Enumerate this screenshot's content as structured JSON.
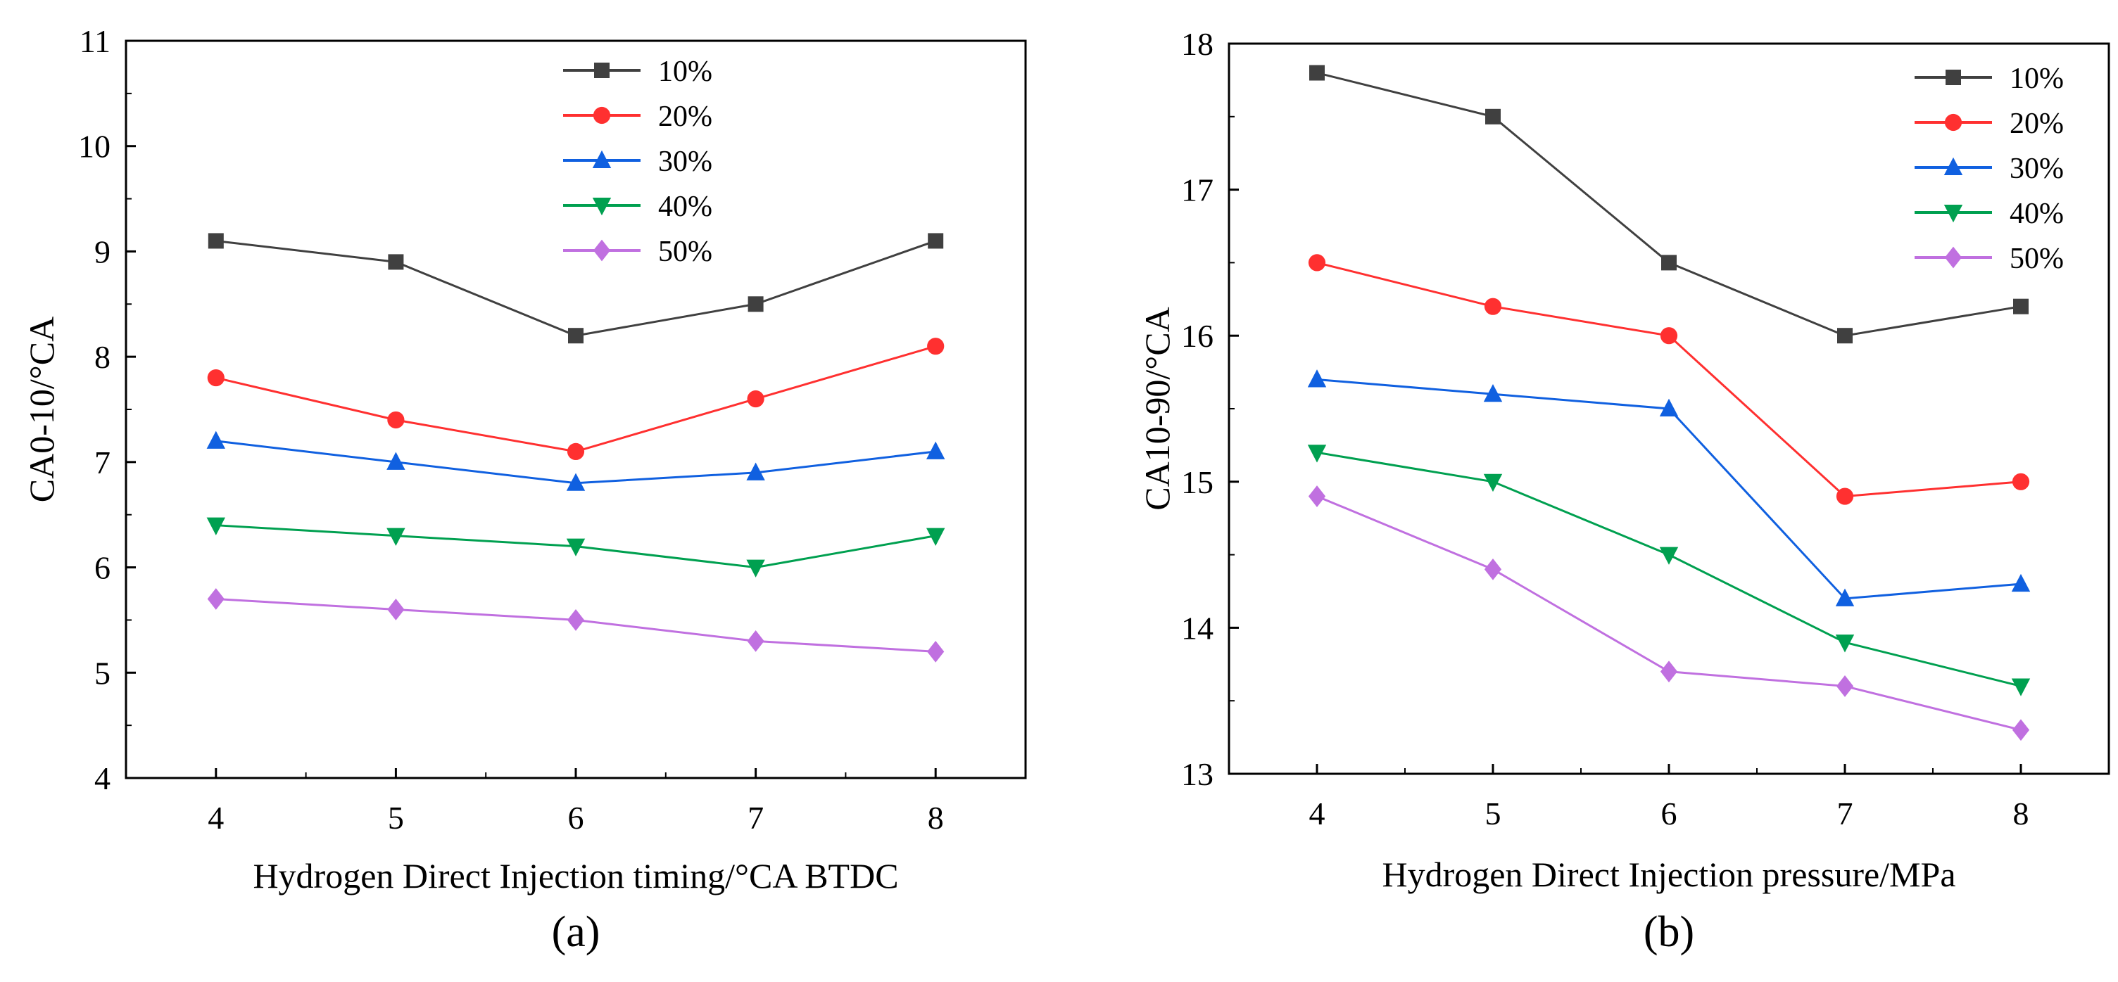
{
  "chart_data": [
    {
      "type": "line",
      "panel_label": "(a)",
      "title": "",
      "xlabel": "Hydrogen Direct Injection timing/°CA BTDC",
      "ylabel": "CA0-10/°CA",
      "x": [
        4,
        5,
        6,
        7,
        8
      ],
      "xlim": [
        3.5,
        8.5
      ],
      "ylim": [
        4,
        11
      ],
      "yticks": [
        4,
        5,
        6,
        7,
        8,
        9,
        10,
        11
      ],
      "legend_position": "top-center",
      "grid": false,
      "series": [
        {
          "name": "10%",
          "color": "#404040",
          "marker": "square",
          "values": [
            9.1,
            8.9,
            8.2,
            8.5,
            9.1
          ]
        },
        {
          "name": "20%",
          "color": "#ff3030",
          "marker": "circle",
          "values": [
            7.8,
            7.4,
            7.1,
            7.6,
            8.1
          ]
        },
        {
          "name": "30%",
          "color": "#1060e0",
          "marker": "triangle-up",
          "values": [
            7.2,
            7.0,
            6.8,
            6.9,
            7.1
          ]
        },
        {
          "name": "40%",
          "color": "#00a050",
          "marker": "triangle-down",
          "values": [
            6.4,
            6.3,
            6.2,
            6.0,
            6.3
          ]
        },
        {
          "name": "50%",
          "color": "#c070e0",
          "marker": "diamond",
          "values": [
            5.7,
            5.6,
            5.5,
            5.3,
            5.2
          ]
        }
      ]
    },
    {
      "type": "line",
      "panel_label": "(b)",
      "title": "",
      "xlabel": "Hydrogen Direct Injection pressure/MPa",
      "ylabel": "CA10-90/°CA",
      "x": [
        4,
        5,
        6,
        7,
        8
      ],
      "xlim": [
        3.5,
        8.5
      ],
      "ylim": [
        13,
        18
      ],
      "yticks": [
        13,
        14,
        15,
        16,
        17,
        18
      ],
      "legend_position": "top-right",
      "grid": false,
      "series": [
        {
          "name": "10%",
          "color": "#404040",
          "marker": "square",
          "values": [
            17.8,
            17.5,
            16.5,
            16.0,
            16.2
          ]
        },
        {
          "name": "20%",
          "color": "#ff3030",
          "marker": "circle",
          "values": [
            16.5,
            16.2,
            16.0,
            14.9,
            15.0
          ]
        },
        {
          "name": "30%",
          "color": "#1060e0",
          "marker": "triangle-up",
          "values": [
            15.7,
            15.6,
            15.5,
            14.2,
            14.3
          ]
        },
        {
          "name": "40%",
          "color": "#00a050",
          "marker": "triangle-down",
          "values": [
            15.2,
            15.0,
            14.5,
            13.9,
            13.6
          ]
        },
        {
          "name": "50%",
          "color": "#c070e0",
          "marker": "diamond",
          "values": [
            14.9,
            14.4,
            13.7,
            13.6,
            13.3
          ]
        }
      ]
    }
  ]
}
